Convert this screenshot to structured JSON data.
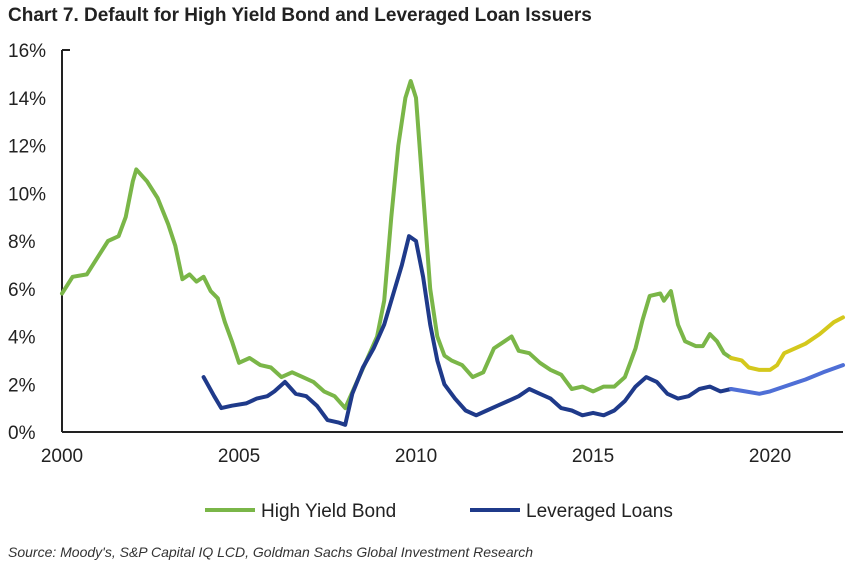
{
  "chart_data": {
    "type": "line",
    "title": "Chart 7.  Default for High Yield Bond and Leveraged Loan Issuers",
    "source": "Source: Moody's, S&P Capital IQ LCD, Goldman Sachs Global Investment Research",
    "xlim": [
      2000,
      2022.06
    ],
    "ylim": [
      0,
      16
    ],
    "xticks": [
      2000,
      2005,
      2010,
      2015,
      2020
    ],
    "xtick_labels": [
      "2000",
      "2005",
      "2010",
      "2015",
      "2020"
    ],
    "yticks": [
      0,
      2,
      4,
      6,
      8,
      10,
      12,
      14,
      16
    ],
    "ytick_labels": [
      "0%",
      "2%",
      "4%",
      "6%",
      "8%",
      "10%",
      "12%",
      "14%",
      "16%"
    ],
    "legend_position": "bottom",
    "series": [
      {
        "name": "High Yield Bond",
        "color": "#7ab648",
        "forecast_color": "#d4c81c",
        "x": [
          2000.0,
          2000.3,
          2000.7,
          2001.0,
          2001.3,
          2001.6,
          2001.8,
          2002.0,
          2002.1,
          2002.4,
          2002.7,
          2003.0,
          2003.2,
          2003.4,
          2003.6,
          2003.8,
          2004.0,
          2004.2,
          2004.4,
          2004.6,
          2004.8,
          2005.0,
          2005.3,
          2005.6,
          2005.9,
          2006.2,
          2006.5,
          2006.8,
          2007.1,
          2007.4,
          2007.7,
          2008.0,
          2008.3,
          2008.6,
          2008.9,
          2009.1,
          2009.3,
          2009.5,
          2009.7,
          2009.85,
          2010.0,
          2010.2,
          2010.4,
          2010.6,
          2010.8,
          2011.0,
          2011.3,
          2011.6,
          2011.9,
          2012.2,
          2012.5,
          2012.7,
          2012.9,
          2013.2,
          2013.5,
          2013.8,
          2014.1,
          2014.4,
          2014.7,
          2015.0,
          2015.3,
          2015.6,
          2015.9,
          2016.2,
          2016.4,
          2016.6,
          2016.9,
          2017.0,
          2017.2,
          2017.4,
          2017.6,
          2017.9,
          2018.1,
          2018.3,
          2018.5,
          2018.7,
          2018.9
        ],
        "values": [
          5.8,
          6.5,
          6.6,
          7.3,
          8.0,
          8.2,
          9.0,
          10.5,
          11.0,
          10.5,
          9.8,
          8.7,
          7.8,
          6.4,
          6.6,
          6.3,
          6.5,
          5.9,
          5.6,
          4.6,
          3.8,
          2.9,
          3.1,
          2.8,
          2.7,
          2.3,
          2.5,
          2.3,
          2.1,
          1.7,
          1.5,
          1.0,
          2.0,
          3.0,
          4.0,
          5.5,
          9.0,
          12.0,
          14.0,
          14.7,
          14.0,
          10.0,
          6.0,
          4.0,
          3.2,
          3.0,
          2.8,
          2.3,
          2.5,
          3.5,
          3.8,
          4.0,
          3.4,
          3.3,
          2.9,
          2.6,
          2.4,
          1.8,
          1.9,
          1.7,
          1.9,
          1.9,
          2.3,
          3.5,
          4.7,
          5.7,
          5.8,
          5.5,
          5.9,
          4.5,
          3.8,
          3.6,
          3.6,
          4.1,
          3.8,
          3.3,
          3.1
        ],
        "forecast_x": [
          2018.9,
          2019.2,
          2019.4,
          2019.7,
          2020.0,
          2020.2,
          2020.4,
          2020.7,
          2021.0,
          2021.4,
          2021.8,
          2022.06
        ],
        "forecast_values": [
          3.1,
          3.0,
          2.7,
          2.6,
          2.6,
          2.8,
          3.3,
          3.5,
          3.7,
          4.1,
          4.6,
          4.8
        ]
      },
      {
        "name": "Leveraged Loans",
        "color": "#1f3a8a",
        "forecast_color": "#4f6fd6",
        "x": [
          2004.0,
          2004.3,
          2004.5,
          2004.8,
          2005.2,
          2005.5,
          2005.8,
          2006.0,
          2006.3,
          2006.6,
          2006.9,
          2007.2,
          2007.5,
          2007.8,
          2008.0,
          2008.2,
          2008.5,
          2008.8,
          2009.1,
          2009.4,
          2009.6,
          2009.8,
          2010.0,
          2010.2,
          2010.4,
          2010.6,
          2010.8,
          2011.1,
          2011.4,
          2011.7,
          2012.0,
          2012.3,
          2012.6,
          2012.9,
          2013.2,
          2013.5,
          2013.8,
          2014.1,
          2014.4,
          2014.7,
          2015.0,
          2015.3,
          2015.6,
          2015.9,
          2016.2,
          2016.5,
          2016.8,
          2017.1,
          2017.4,
          2017.7,
          2018.0,
          2018.3,
          2018.6,
          2018.9
        ],
        "values": [
          2.3,
          1.5,
          1.0,
          1.1,
          1.2,
          1.4,
          1.5,
          1.7,
          2.1,
          1.6,
          1.5,
          1.1,
          0.5,
          0.4,
          0.3,
          1.6,
          2.7,
          3.5,
          4.5,
          6.0,
          7.0,
          8.2,
          8.0,
          6.5,
          4.5,
          3.0,
          2.0,
          1.4,
          0.9,
          0.7,
          0.9,
          1.1,
          1.3,
          1.5,
          1.8,
          1.6,
          1.4,
          1.0,
          0.9,
          0.7,
          0.8,
          0.7,
          0.9,
          1.3,
          1.9,
          2.3,
          2.1,
          1.6,
          1.4,
          1.5,
          1.8,
          1.9,
          1.7,
          1.8
        ],
        "forecast_x": [
          2018.9,
          2019.3,
          2019.7,
          2020.0,
          2020.4,
          2021.0,
          2021.5,
          2022.06
        ],
        "forecast_values": [
          1.8,
          1.7,
          1.6,
          1.7,
          1.9,
          2.2,
          2.5,
          2.8
        ]
      }
    ]
  }
}
